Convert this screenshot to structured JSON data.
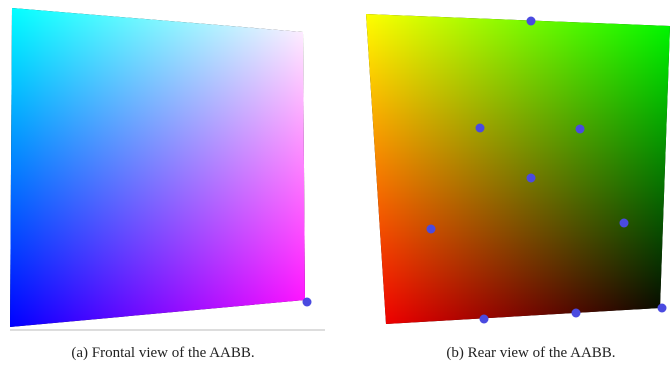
{
  "figures": [
    {
      "caption": "(a) Frontal view of the AABB."
    },
    {
      "caption": "(b) Rear view of the AABB."
    }
  ]
}
